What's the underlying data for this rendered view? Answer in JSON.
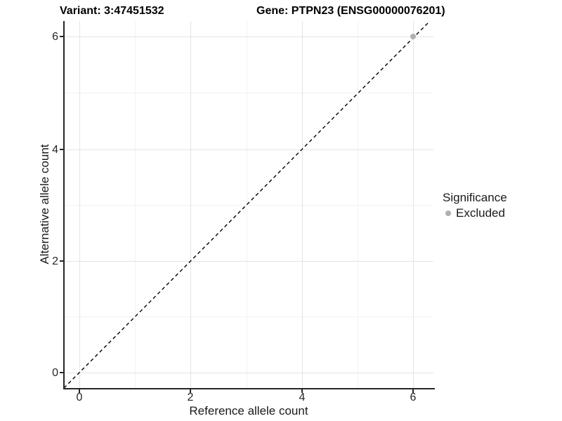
{
  "figure": {
    "title_variant": "Variant: 3:47451532",
    "title_gene": "Gene: PTPN23 (ENSG00000076201)"
  },
  "axes": {
    "x_title": "Reference allele count",
    "y_title": "Alternative allele count",
    "x_tick_labels": [
      "0",
      "2",
      "4",
      "6"
    ],
    "y_tick_labels": [
      "6",
      "4",
      "2",
      "0"
    ]
  },
  "legend": {
    "title": "Significance",
    "items": [
      {
        "label": "Excluded",
        "color": "#b0b0b0"
      }
    ]
  },
  "colors": {
    "background": "#ffffff",
    "axis_line": "#262626",
    "grid_major": "#e4e4e4",
    "grid_minor": "#f2f2f2",
    "reference_line": "#000000",
    "excluded_point": "#b0b0b0"
  },
  "chart_data": {
    "type": "scatter",
    "title_left": "Variant: 3:47451532",
    "title_right": "Gene: PTPN23 (ENSG00000076201)",
    "xlabel": "Reference allele count",
    "ylabel": "Alternative allele count",
    "xlim": [
      -0.3,
      6.35
    ],
    "ylim": [
      -0.3,
      6.35
    ],
    "x_ticks": [
      0,
      2,
      4,
      6
    ],
    "y_ticks": [
      0,
      2,
      4,
      6
    ],
    "grid": "major and minor gridlines, white background",
    "reference_line": {
      "type": "identity y=x",
      "style": "dashed",
      "color": "#000000"
    },
    "points": [
      {
        "x": 6,
        "y": 6,
        "significance": "Excluded",
        "color": "#b0b0b0"
      }
    ],
    "legend_position": "right"
  }
}
